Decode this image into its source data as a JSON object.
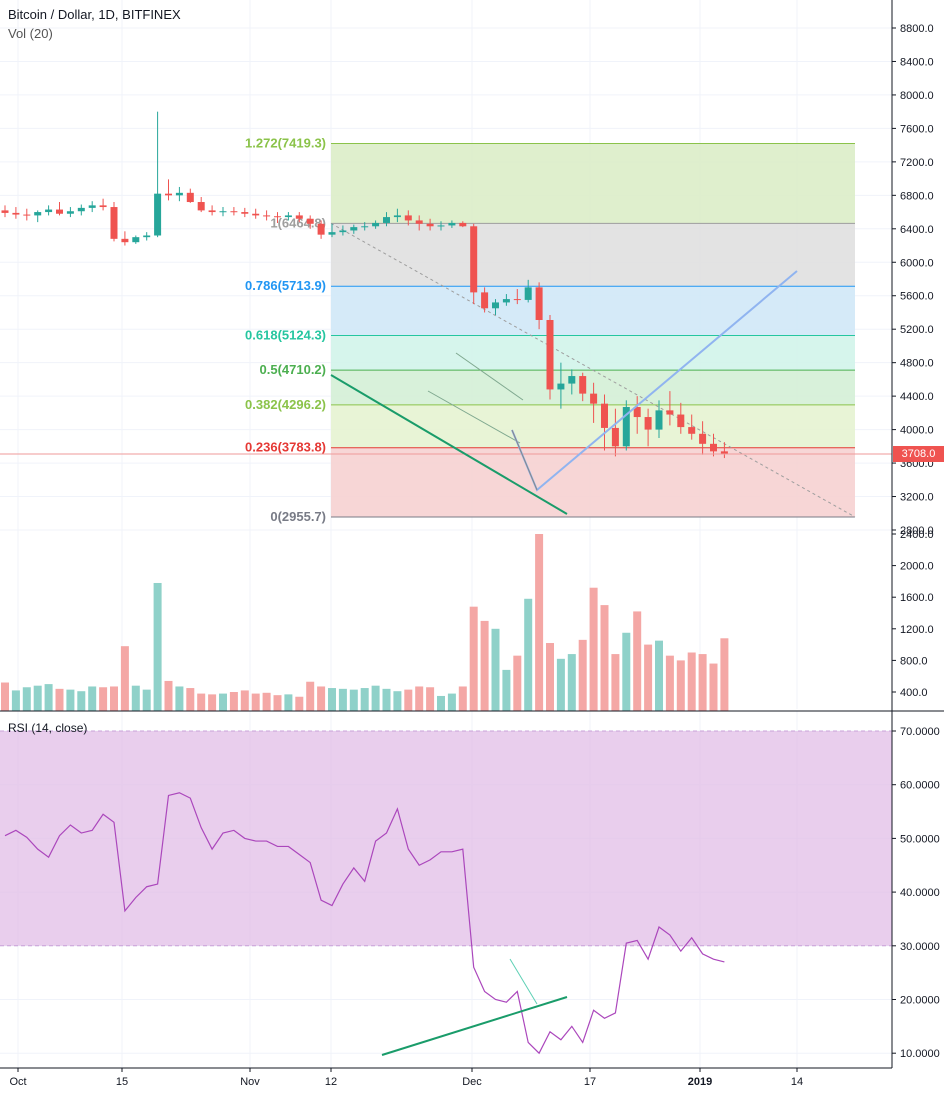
{
  "header": {
    "title": "Bitcoin / Dollar, 1D, BITFINEX",
    "volume_label": "Vol (20)"
  },
  "price_axis": {
    "ticks": [
      "8800.0",
      "8400.0",
      "8000.0",
      "7600.0",
      "7200.0",
      "6800.0",
      "6400.0",
      "6000.0",
      "5600.0",
      "5200.0",
      "4800.0",
      "4400.0",
      "4000.0",
      "3600.0",
      "3200.0",
      "2800.0"
    ],
    "tick_values": [
      8800,
      8400,
      8000,
      7600,
      7200,
      6800,
      6400,
      6000,
      5600,
      5200,
      4800,
      4400,
      4000,
      3600,
      3200,
      2800
    ],
    "last_price": "3708.0"
  },
  "volume_axis": {
    "ticks": [
      "2400.0",
      "2000.0",
      "1600.0",
      "1200.0",
      "800.0",
      "400.0"
    ],
    "tick_values": [
      2400,
      2000,
      1600,
      1200,
      800,
      400
    ]
  },
  "rsi": {
    "title": "RSI (14, close)",
    "ticks": [
      "70.0000",
      "60.0000",
      "50.0000",
      "40.0000",
      "30.0000",
      "20.0000",
      "10.0000"
    ],
    "tick_values": [
      70,
      60,
      50,
      40,
      30,
      20,
      10
    ],
    "band_upper": 70,
    "band_lower": 30
  },
  "time_axis": {
    "labels": [
      "Oct",
      "15",
      "Nov",
      "12",
      "Dec",
      "17",
      "2019",
      "14"
    ],
    "bold": [
      false,
      false,
      false,
      false,
      false,
      false,
      true,
      false
    ]
  },
  "fib_levels": [
    {
      "label": "1.272(7419.3)",
      "value": 7419.3,
      "color": "#8bc34a"
    },
    {
      "label": "1(6464.8)",
      "value": 6464.8,
      "color": "#9e9e9e"
    },
    {
      "label": "0.786(5713.9)",
      "value": 5713.9,
      "color": "#2196f3"
    },
    {
      "label": "0.618(5124.3)",
      "value": 5124.3,
      "color": "#26c6a0"
    },
    {
      "label": "0.5(4710.2)",
      "value": 4710.2,
      "color": "#4caf50"
    },
    {
      "label": "0.382(4296.2)",
      "value": 4296.2,
      "color": "#8bc34a"
    },
    {
      "label": "0.236(3783.8)",
      "value": 3783.8,
      "color": "#e53935"
    },
    {
      "label": "0(2955.7)",
      "value": 2955.7,
      "color": "#787b86"
    }
  ],
  "colors": {
    "up": "#26a69a",
    "down": "#ef5350",
    "rsi_line": "#ab47bc",
    "rsi_band": "#e1bee7",
    "trendline": "#1a9c6a",
    "projection": "#90b4f0"
  },
  "chart_data": [
    {
      "type": "candlestick",
      "title": "Bitcoin / Dollar, 1D, BITFINEX",
      "ylim": [
        2700,
        9000
      ],
      "x": [
        "Oct 1",
        "Oct 2",
        "Oct 3",
        "Oct 4",
        "Oct 5",
        "Oct 6",
        "Oct 7",
        "Oct 8",
        "Oct 9",
        "Oct 10",
        "Oct 11",
        "Oct 12",
        "Oct 13",
        "Oct 14",
        "Oct 15",
        "Oct 16",
        "Oct 17",
        "Oct 18",
        "Oct 19",
        "Oct 20",
        "Oct 21",
        "Oct 22",
        "Oct 23",
        "Oct 24",
        "Oct 25",
        "Oct 26",
        "Oct 27",
        "Oct 28",
        "Oct 29",
        "Oct 30",
        "Oct 31",
        "Nov 1",
        "Nov 2",
        "Nov 3",
        "Nov 4",
        "Nov 5",
        "Nov 6",
        "Nov 7",
        "Nov 8",
        "Nov 9",
        "Nov 10",
        "Nov 11",
        "Nov 12",
        "Nov 13",
        "Nov 14",
        "Nov 15",
        "Nov 16",
        "Nov 17",
        "Nov 18",
        "Nov 19",
        "Nov 20",
        "Nov 21",
        "Nov 22",
        "Nov 23",
        "Nov 24",
        "Nov 25",
        "Nov 26",
        "Nov 27",
        "Nov 28",
        "Nov 29",
        "Nov 30",
        "Dec 1",
        "Dec 2",
        "Dec 3",
        "Dec 4",
        "Dec 5",
        "Dec 6"
      ],
      "open": [
        6620,
        6590,
        6570,
        6560,
        6600,
        6630,
        6580,
        6610,
        6650,
        6680,
        6660,
        6280,
        6240,
        6300,
        6320,
        6820,
        6800,
        6830,
        6720,
        6620,
        6600,
        6610,
        6600,
        6580,
        6560,
        6550,
        6540,
        6560,
        6520,
        6460,
        6330,
        6360,
        6380,
        6420,
        6430,
        6470,
        6540,
        6560,
        6500,
        6460,
        6430,
        6440,
        6470,
        6430,
        5640,
        5450,
        5520,
        5560,
        5550,
        5700,
        5310,
        4480,
        4550,
        4640,
        4430,
        4310,
        4020,
        3800,
        4270,
        4150,
        4000,
        4230,
        4180,
        4030,
        3950,
        3830,
        3740
      ],
      "high": [
        6680,
        6660,
        6640,
        6620,
        6680,
        6720,
        6660,
        6690,
        6730,
        6760,
        6720,
        6370,
        6320,
        6360,
        7800,
        6990,
        6900,
        6880,
        6780,
        6680,
        6660,
        6660,
        6650,
        6640,
        6620,
        6600,
        6600,
        6600,
        6560,
        6500,
        6460,
        6440,
        6450,
        6480,
        6500,
        6600,
        6640,
        6620,
        6560,
        6520,
        6490,
        6500,
        6490,
        6460,
        5700,
        5560,
        5620,
        5680,
        5790,
        5760,
        5370,
        4800,
        4720,
        4680,
        4560,
        4420,
        4250,
        4350,
        4400,
        4250,
        4350,
        4460,
        4320,
        4180,
        4100,
        3950,
        3850
      ],
      "low": [
        6540,
        6520,
        6500,
        6480,
        6560,
        6560,
        6540,
        6560,
        6600,
        6620,
        6250,
        6200,
        6220,
        6260,
        6300,
        6740,
        6730,
        6710,
        6600,
        6560,
        6550,
        6560,
        6540,
        6520,
        6500,
        6470,
        6500,
        6480,
        6400,
        6280,
        6300,
        6320,
        6340,
        6380,
        6400,
        6430,
        6480,
        6440,
        6380,
        6380,
        6380,
        6410,
        6420,
        5500,
        5400,
        5370,
        5480,
        5500,
        5520,
        5200,
        4360,
        4250,
        4420,
        4340,
        4080,
        3750,
        3680,
        3750,
        3950,
        3800,
        3900,
        4050,
        3950,
        3880,
        3700,
        3680,
        3660
      ],
      "close": [
        6590,
        6570,
        6560,
        6600,
        6630,
        6580,
        6610,
        6650,
        6680,
        6660,
        6280,
        6240,
        6300,
        6320,
        6820,
        6800,
        6830,
        6720,
        6620,
        6600,
        6610,
        6600,
        6580,
        6560,
        6550,
        6540,
        6560,
        6520,
        6460,
        6330,
        6360,
        6380,
        6420,
        6430,
        6470,
        6540,
        6560,
        6500,
        6460,
        6430,
        6440,
        6470,
        6430,
        5640,
        5450,
        5520,
        5560,
        5550,
        5700,
        5310,
        4480,
        4550,
        4640,
        4430,
        4310,
        4020,
        3800,
        4270,
        4150,
        4000,
        4230,
        4180,
        4030,
        3950,
        3830,
        3740,
        3708
      ]
    },
    {
      "type": "bar",
      "title": "Vol (20)",
      "ylim": [
        200,
        2600
      ],
      "values": [
        520,
        420,
        460,
        480,
        500,
        440,
        430,
        410,
        470,
        460,
        470,
        980,
        480,
        430,
        1780,
        540,
        470,
        450,
        380,
        370,
        380,
        400,
        420,
        380,
        390,
        360,
        370,
        340,
        530,
        470,
        450,
        440,
        430,
        450,
        480,
        440,
        410,
        430,
        470,
        460,
        350,
        380,
        470,
        1480,
        1300,
        1200,
        680,
        860,
        1580,
        2400,
        1020,
        820,
        880,
        1060,
        1720,
        1500,
        880,
        1150,
        1420,
        1000,
        1050,
        860,
        800,
        900,
        880,
        760,
        1080
      ],
      "up": [
        false,
        true,
        true,
        true,
        true,
        false,
        true,
        true,
        true,
        false,
        false,
        false,
        true,
        true,
        true,
        false,
        true,
        false,
        false,
        false,
        true,
        false,
        false,
        false,
        false,
        false,
        true,
        false,
        false,
        false,
        true,
        true,
        true,
        true,
        true,
        true,
        true,
        false,
        false,
        false,
        true,
        true,
        false,
        false,
        false,
        true,
        true,
        false,
        true,
        false,
        false,
        true,
        true,
        false,
        false,
        false,
        false,
        true,
        false,
        false,
        true,
        false,
        false,
        false,
        false,
        false,
        false
      ]
    },
    {
      "type": "line",
      "title": "RSI (14, close)",
      "ylim": [
        8,
        72
      ],
      "values": [
        50.5,
        51.5,
        50.2,
        48.0,
        46.5,
        50.5,
        52.5,
        51.0,
        51.5,
        54.5,
        53.0,
        36.5,
        39.0,
        41.0,
        41.5,
        58.0,
        58.5,
        57.5,
        52.0,
        48.0,
        51.0,
        51.5,
        50.0,
        49.5,
        49.5,
        48.5,
        48.5,
        47.0,
        45.5,
        38.5,
        37.5,
        41.5,
        44.5,
        42.0,
        49.5,
        51.0,
        55.5,
        48.0,
        45.0,
        46.0,
        47.5,
        47.5,
        48.0,
        26.0,
        21.5,
        20.0,
        19.5,
        21.5,
        12.0,
        10.0,
        14.0,
        12.5,
        15.0,
        12.0,
        18.0,
        16.5,
        17.5,
        30.5,
        31.0,
        27.5,
        33.5,
        32.0,
        29.0,
        31.5,
        28.5,
        27.5,
        27.0
      ]
    }
  ]
}
